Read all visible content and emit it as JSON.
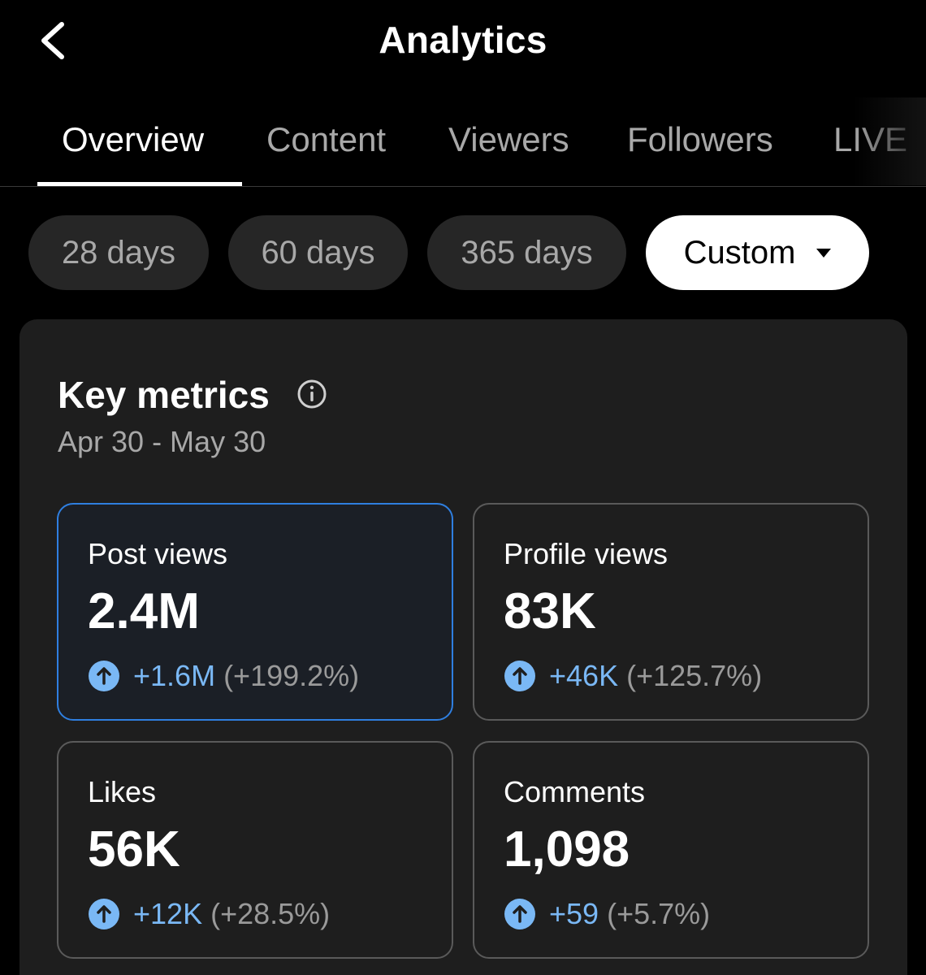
{
  "header": {
    "title": "Analytics",
    "back_icon": "chevron-left-icon"
  },
  "tabs": [
    {
      "label": "Overview",
      "active": true
    },
    {
      "label": "Content",
      "active": false
    },
    {
      "label": "Viewers",
      "active": false
    },
    {
      "label": "Followers",
      "active": false
    },
    {
      "label": "LIVE",
      "active": false
    }
  ],
  "periods": [
    {
      "label": "28 days",
      "selected": false
    },
    {
      "label": "60 days",
      "selected": false
    },
    {
      "label": "365 days",
      "selected": false
    },
    {
      "label": "Custom",
      "selected": true
    }
  ],
  "key_metrics": {
    "title": "Key metrics",
    "date_range": "Apr 30 - May 30",
    "metrics": [
      {
        "label": "Post views",
        "value": "2.4M",
        "change": "+1.6M",
        "percent": "(+199.2%)",
        "selected": true
      },
      {
        "label": "Profile views",
        "value": "83K",
        "change": "+46K",
        "percent": "(+125.7%)",
        "selected": false
      },
      {
        "label": "Likes",
        "value": "56K",
        "change": "+12K",
        "percent": "(+28.5%)",
        "selected": false
      },
      {
        "label": "Comments",
        "value": "1,098",
        "change": "+59",
        "percent": "(+5.7%)",
        "selected": false
      }
    ]
  },
  "colors": {
    "background": "#000000",
    "card": "#1e1e1e",
    "accent_blue": "#7ab8f5",
    "selected_border": "#2f7fe0"
  }
}
